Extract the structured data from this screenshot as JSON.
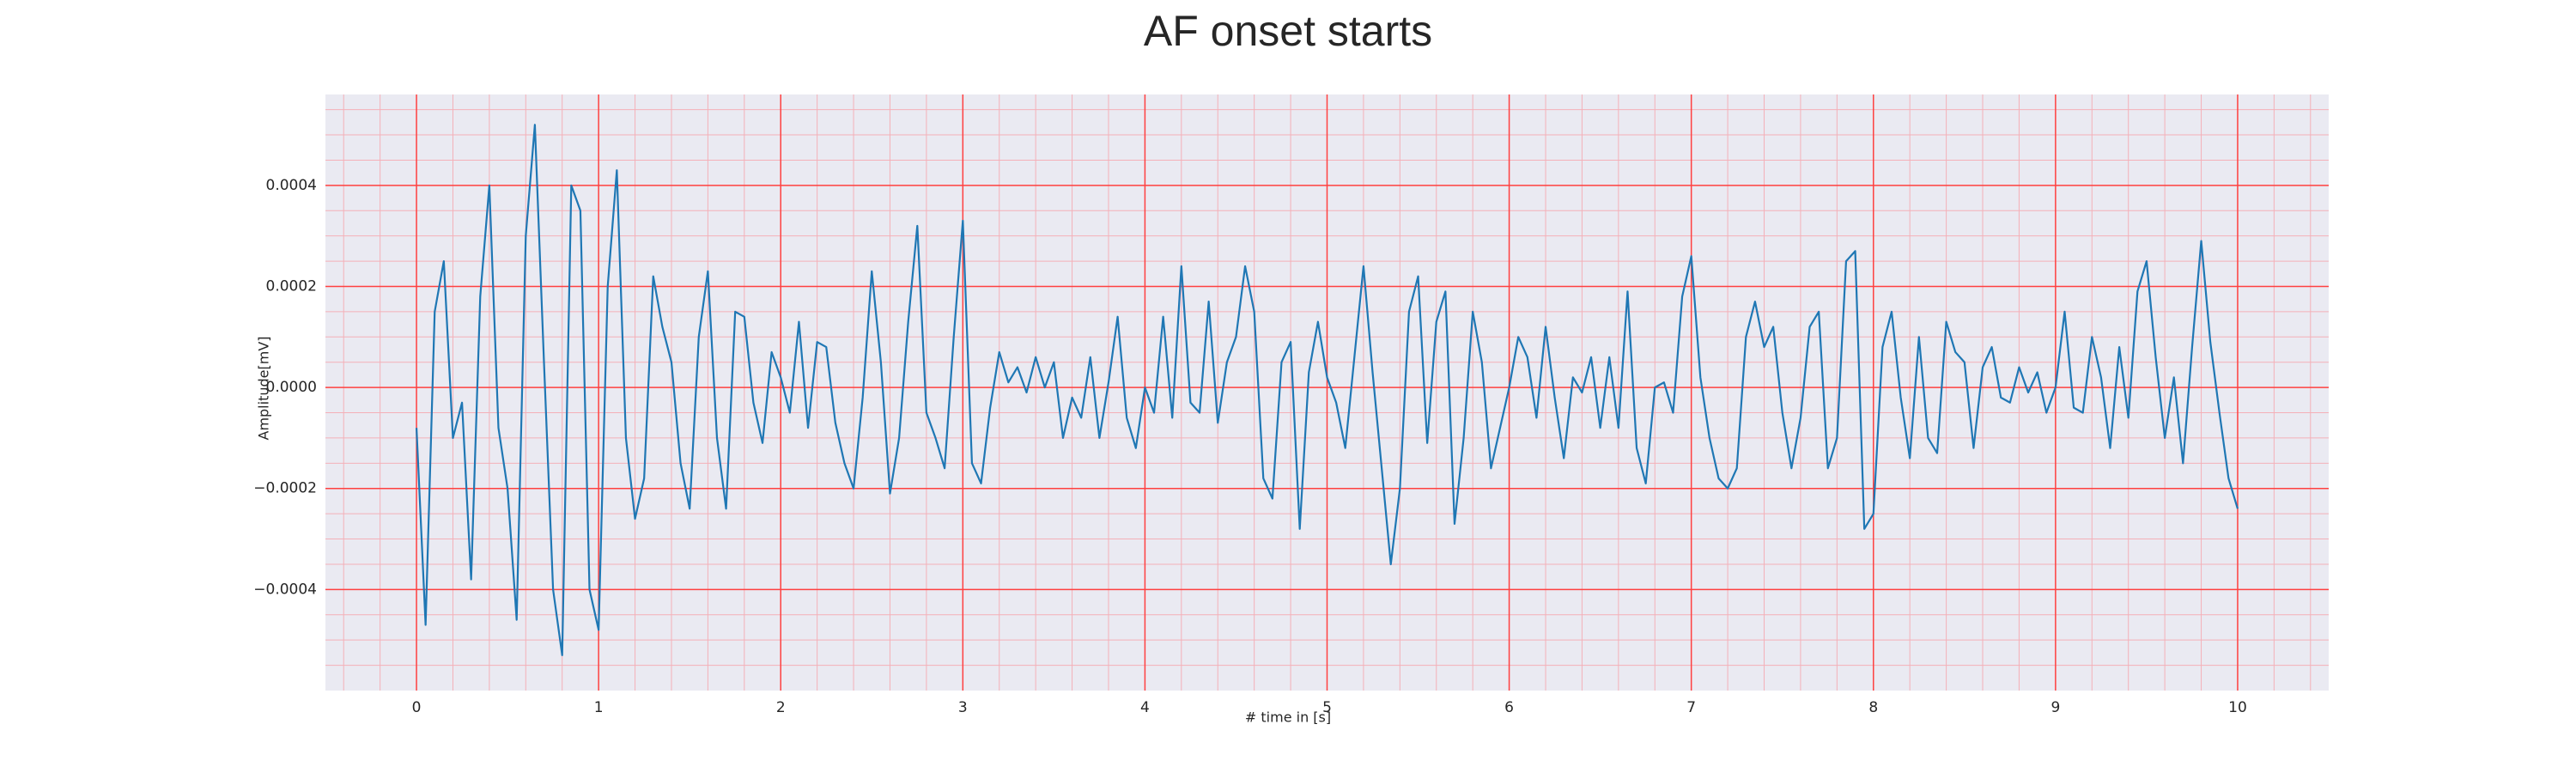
{
  "chart_data": {
    "type": "line",
    "title": "AF onset starts",
    "xlabel": "# time in [s]",
    "ylabel": "Amplitude[mV]",
    "color": "#1f77b4",
    "background": "#eaeaf2",
    "grid": true,
    "grid_color": "#ff4040",
    "minor_grid_color": "#f4b0b8",
    "xlim": [
      -0.5,
      10.5
    ],
    "ylim": [
      -0.0006,
      0.00058
    ],
    "xticks": [
      0,
      1,
      2,
      3,
      4,
      5,
      6,
      7,
      8,
      9,
      10
    ],
    "yticks": [
      {
        "value": -0.0004,
        "label": "−0.0004"
      },
      {
        "value": -0.0002,
        "label": "−0.0002"
      },
      {
        "value": 0,
        "label": "0.0000"
      },
      0.0002,
      0.0004
    ],
    "xminorticks": [
      -0.4,
      -0.2,
      0.2,
      0.4,
      0.6,
      0.8,
      1.2,
      1.4,
      1.6,
      1.8,
      2.2,
      2.4,
      2.6,
      2.8,
      3.2,
      3.4,
      3.6,
      3.8,
      4.2,
      4.4,
      4.6,
      4.8,
      5.2,
      5.4,
      5.6,
      5.8,
      6.2,
      6.4,
      6.6,
      6.8,
      7.2,
      7.4,
      7.6,
      7.8,
      8.2,
      8.4,
      8.6,
      8.8,
      9.2,
      9.4,
      9.6,
      9.8,
      10.2,
      10.4
    ],
    "yminorticks": [
      -0.00055,
      -0.0005,
      -0.00045,
      -0.00035,
      -0.0003,
      -0.00025,
      -0.00015,
      -0.0001,
      -5e-05,
      5e-05,
      0.0001,
      0.00015,
      0.00025,
      0.0003,
      0.00035,
      0.00045,
      0.0005,
      0.00055
    ],
    "x": [
      0,
      0.05,
      0.1,
      0.15,
      0.2,
      0.25,
      0.3,
      0.35,
      0.4,
      0.45,
      0.5,
      0.55,
      0.6,
      0.65,
      0.7,
      0.75,
      0.8,
      0.85,
      0.9,
      0.95,
      1,
      1.05,
      1.1,
      1.15,
      1.2,
      1.25,
      1.3,
      1.35,
      1.4,
      1.45,
      1.5,
      1.55,
      1.6,
      1.65,
      1.7,
      1.75,
      1.8,
      1.85,
      1.9,
      1.95,
      2,
      2.05,
      2.1,
      2.15,
      2.2,
      2.25,
      2.3,
      2.35,
      2.4,
      2.45,
      2.5,
      2.55,
      2.6,
      2.65,
      2.7,
      2.75,
      2.8,
      2.85,
      2.9,
      2.95,
      3,
      3.05,
      3.1,
      3.15,
      3.2,
      3.25,
      3.3,
      3.35,
      3.4,
      3.45,
      3.5,
      3.55,
      3.6,
      3.65,
      3.7,
      3.75,
      3.8,
      3.85,
      3.9,
      3.95,
      4,
      4.05,
      4.1,
      4.15,
      4.2,
      4.25,
      4.3,
      4.35,
      4.4,
      4.45,
      4.5,
      4.55,
      4.6,
      4.65,
      4.7,
      4.75,
      4.8,
      4.85,
      4.9,
      4.95,
      5,
      5.05,
      5.1,
      5.15,
      5.2,
      5.25,
      5.3,
      5.35,
      5.4,
      5.45,
      5.5,
      5.55,
      5.6,
      5.65,
      5.7,
      5.75,
      5.8,
      5.85,
      5.9,
      5.95,
      6,
      6.05,
      6.1,
      6.15,
      6.2,
      6.25,
      6.3,
      6.35,
      6.4,
      6.45,
      6.5,
      6.55,
      6.6,
      6.65,
      6.7,
      6.75,
      6.8,
      6.85,
      6.9,
      6.95,
      7,
      7.05,
      7.1,
      7.15,
      7.2,
      7.25,
      7.3,
      7.35,
      7.4,
      7.45,
      7.5,
      7.55,
      7.6,
      7.65,
      7.7,
      7.75,
      7.8,
      7.85,
      7.9,
      7.95,
      8,
      8.05,
      8.1,
      8.15,
      8.2,
      8.25,
      8.3,
      8.35,
      8.4,
      8.45,
      8.5,
      8.55,
      8.6,
      8.65,
      8.7,
      8.75,
      8.8,
      8.85,
      8.9,
      8.95,
      9,
      9.05,
      9.1,
      9.15,
      9.2,
      9.25,
      9.3,
      9.35,
      9.4,
      9.45,
      9.5,
      9.55,
      9.6,
      9.65,
      9.7,
      9.75,
      9.8,
      9.85,
      9.9,
      9.95,
      10
    ],
    "values": [
      -8e-05,
      -0.00047,
      0.00015,
      0.00025,
      -0.0001,
      -3e-05,
      -0.00038,
      0.00018,
      0.0004,
      -8e-05,
      -0.0002,
      -0.00046,
      0.0003,
      0.00052,
      5e-05,
      -0.0004,
      -0.00053,
      0.0004,
      0.00035,
      -0.0004,
      -0.00048,
      0.0002,
      0.00043,
      -0.0001,
      -0.00026,
      -0.00018,
      0.00022,
      0.00012,
      5e-05,
      -0.00015,
      -0.00024,
      0.0001,
      0.00023,
      -0.0001,
      -0.00024,
      0.00015,
      0.00014,
      -3e-05,
      -0.00011,
      7e-05,
      2e-05,
      -5e-05,
      0.00013,
      -8e-05,
      9e-05,
      8e-05,
      -7e-05,
      -0.00015,
      -0.0002,
      -2e-05,
      0.00023,
      5e-05,
      -0.00021,
      -0.0001,
      0.00013,
      0.00032,
      -5e-05,
      -0.0001,
      -0.00016,
      0.0001,
      0.00033,
      -0.00015,
      -0.00019,
      -4e-05,
      7e-05,
      1e-05,
      4e-05,
      -1e-05,
      6e-05,
      0,
      5e-05,
      -0.0001,
      -2e-05,
      -6e-05,
      6e-05,
      -0.0001,
      1e-05,
      0.00014,
      -6e-05,
      -0.00012,
      0,
      -5e-05,
      0.00014,
      -6e-05,
      0.00024,
      -3e-05,
      -5e-05,
      0.00017,
      -7e-05,
      5e-05,
      0.0001,
      0.00024,
      0.00015,
      -0.00018,
      -0.00022,
      5e-05,
      9e-05,
      -0.00028,
      3e-05,
      0.00013,
      2e-05,
      -3e-05,
      -0.00012,
      6e-05,
      0.00024,
      3e-05,
      -0.00016,
      -0.00035,
      -0.0002,
      0.00015,
      0.00022,
      -0.00011,
      0.00013,
      0.00019,
      -0.00027,
      -0.0001,
      0.00015,
      5e-05,
      -0.00016,
      -8e-05,
      0,
      0.0001,
      6e-05,
      -6e-05,
      0.00012,
      -2e-05,
      -0.00014,
      2e-05,
      -1e-05,
      6e-05,
      -8e-05,
      6e-05,
      -8e-05,
      0.00019,
      -0.00012,
      -0.00019,
      0,
      1e-05,
      -5e-05,
      0.00018,
      0.00026,
      2e-05,
      -0.0001,
      -0.00018,
      -0.0002,
      -0.00016,
      0.0001,
      0.00017,
      8e-05,
      0.00012,
      -5e-05,
      -0.00016,
      -6e-05,
      0.00012,
      0.00015,
      -0.00016,
      -0.0001,
      0.00025,
      0.00027,
      -0.00028,
      -0.00025,
      8e-05,
      0.00015,
      -2e-05,
      -0.00014,
      0.0001,
      -0.0001,
      -0.00013,
      0.00013,
      7e-05,
      5e-05,
      -0.00012,
      4e-05,
      8e-05,
      -2e-05,
      -3e-05,
      4e-05,
      -1e-05,
      3e-05,
      -5e-05,
      0,
      0.00015,
      -4e-05,
      -5e-05,
      0.0001,
      2e-05,
      -0.00012,
      8e-05,
      -6e-05,
      0.00019,
      0.00025,
      6e-05,
      -0.0001,
      2e-05,
      -0.00015,
      8e-05,
      0.00029,
      9e-05,
      -5e-05,
      -0.00018,
      -0.00024
    ]
  }
}
